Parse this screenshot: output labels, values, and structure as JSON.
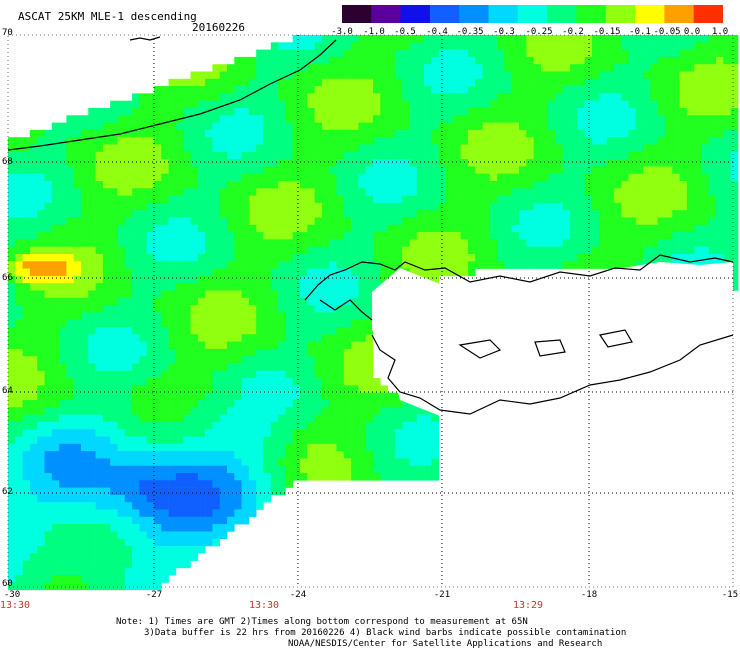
{
  "header": {
    "title": "ASCAT 25KM MLE-1 descending",
    "date": "20160226"
  },
  "colorbar": {
    "labels": [
      "-3.0",
      "-1.0",
      "-0.5",
      "-0.4",
      "-0.35",
      "-0.3",
      "-0.25",
      "-0.2",
      "-0.15",
      "-0.1",
      "-0.05",
      "0.0",
      "1.0"
    ],
    "colors": [
      "#2b0030",
      "#5a00a0",
      "#1010e8",
      "#1060ff",
      "#0090ff",
      "#00d8ff",
      "#00ffe0",
      "#00ff80",
      "#20ff20",
      "#90ff10",
      "#ffff00",
      "#ffa000",
      "#ff3000"
    ]
  },
  "axes": {
    "lat_labels": [
      "70",
      "68",
      "66",
      "64",
      "62",
      "60"
    ],
    "lon_labels": [
      "-30",
      "-27",
      "-24",
      "-21",
      "-18",
      "-15"
    ]
  },
  "times": [
    "13:30",
    "13:30",
    "13:29"
  ],
  "notes": {
    "line1": "Note: 1) Times are GMT 2)Times along bottom correspond to measurement at 65N",
    "line2": "3)Data buffer is 22 hrs from 20160226 4) Black wind barbs indicate possible contamination",
    "line3": "NOAA/NESDIS/Center for Satellite Applications and Research"
  }
}
